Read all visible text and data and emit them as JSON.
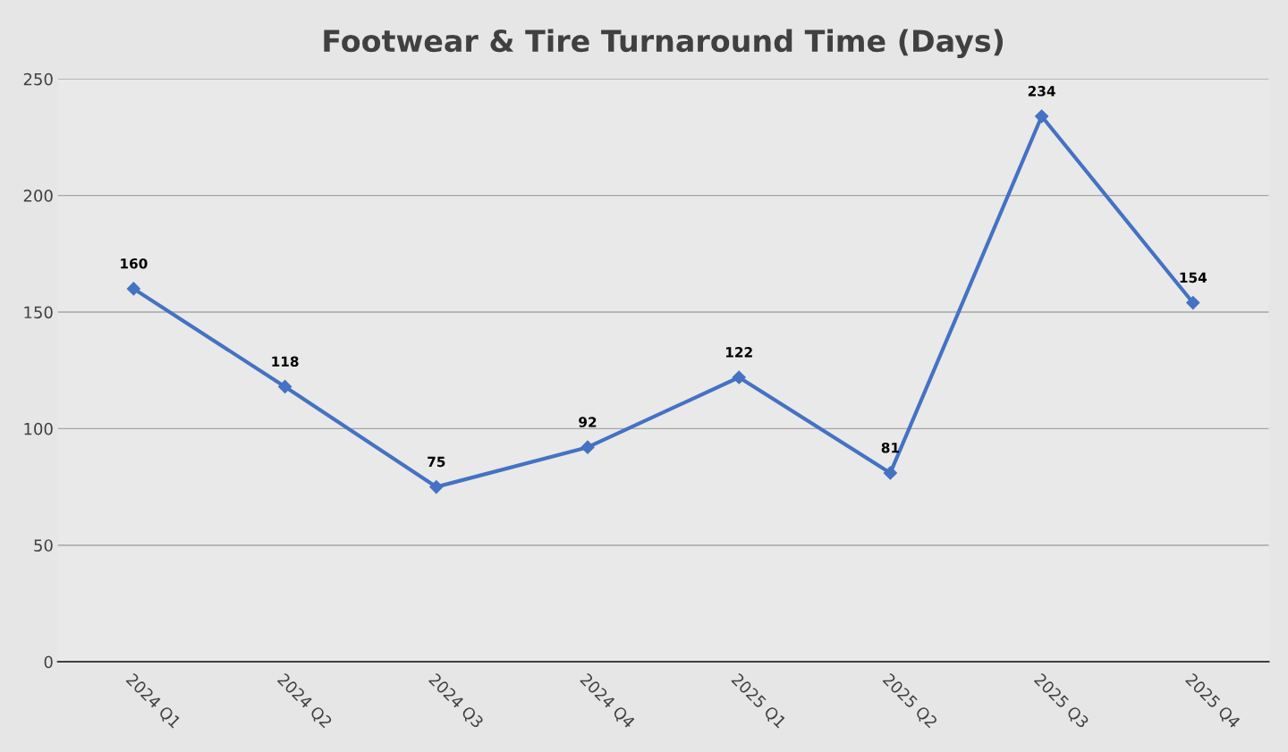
{
  "chart_data": {
    "type": "line",
    "title": "Footwear & Tire Turnaround Time (Days)",
    "categories": [
      "2024 Q1",
      "2024 Q2",
      "2024 Q3",
      "2024 Q4",
      "2025 Q1",
      "2025 Q2",
      "2025 Q3",
      "2025 Q4"
    ],
    "series": [
      {
        "color": "#4472c4",
        "values": [
          160,
          118,
          75,
          92,
          122,
          81,
          234,
          154
        ]
      }
    ],
    "ylim": [
      0,
      250
    ],
    "yticks": [
      0,
      50,
      100,
      150,
      200,
      250
    ],
    "grid": "y",
    "marker": "diamond",
    "line_style": "solid",
    "data_labels": true
  }
}
